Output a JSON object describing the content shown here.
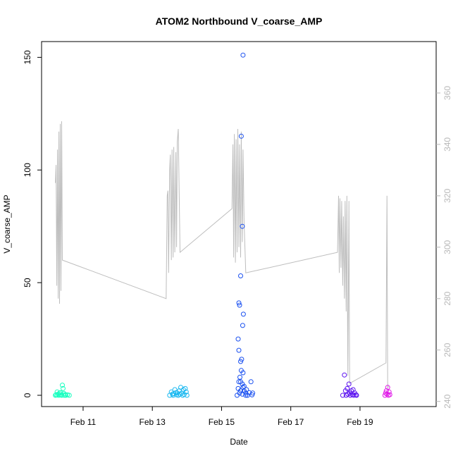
{
  "chart_data": {
    "type": "scatter",
    "title": "ATOM2 Northbound V_coarse_AMP",
    "xlabel": "Date",
    "ylabel": "V_coarse_AMP",
    "x_ticks": [
      "Feb 11",
      "Feb 13",
      "Feb 15",
      "Feb 17",
      "Feb 19"
    ],
    "x_tick_values": [
      11,
      13,
      15,
      17,
      19
    ],
    "xlim": [
      9.8,
      21.2
    ],
    "ylim": [
      -5,
      157
    ],
    "y_ticks": [
      0,
      50,
      100,
      150
    ],
    "right_axis": {
      "ylim": [
        238,
        380
      ],
      "ticks": [
        240,
        260,
        280,
        300,
        320,
        340,
        360
      ],
      "color": "#b8b8b8"
    },
    "grid": false,
    "series": [
      {
        "color": "#1affc0",
        "points": [
          [
            10.2,
            0
          ],
          [
            10.22,
            0.3
          ],
          [
            10.25,
            0.1
          ],
          [
            10.28,
            0.5
          ],
          [
            10.3,
            0
          ],
          [
            10.32,
            1
          ],
          [
            10.35,
            0.2
          ],
          [
            10.38,
            0
          ],
          [
            10.4,
            4.5
          ],
          [
            10.42,
            3
          ],
          [
            10.45,
            0
          ],
          [
            10.48,
            0.3
          ],
          [
            10.5,
            0
          ],
          [
            10.55,
            0.2
          ],
          [
            10.6,
            0
          ],
          [
            10.25,
            1.5
          ],
          [
            10.35,
            1.2
          ],
          [
            10.45,
            0.8
          ]
        ]
      },
      {
        "color": "#1ab8f0",
        "points": [
          [
            13.5,
            0
          ],
          [
            13.55,
            1.5
          ],
          [
            13.58,
            0.5
          ],
          [
            13.6,
            0
          ],
          [
            13.65,
            2.5
          ],
          [
            13.7,
            0.2
          ],
          [
            13.72,
            1
          ],
          [
            13.75,
            0
          ],
          [
            13.78,
            2
          ],
          [
            13.8,
            0.5
          ],
          [
            13.82,
            3.5
          ],
          [
            13.85,
            1
          ],
          [
            13.88,
            0
          ],
          [
            13.9,
            2.5
          ],
          [
            13.95,
            3
          ],
          [
            13.98,
            1.5
          ],
          [
            14.0,
            0
          ],
          [
            13.62,
            0.8
          ],
          [
            13.68,
            1.2
          ],
          [
            13.92,
            0.4
          ]
        ]
      },
      {
        "color": "#1a50f0",
        "points": [
          [
            15.45,
            0
          ],
          [
            15.48,
            3
          ],
          [
            15.5,
            6
          ],
          [
            15.52,
            1
          ],
          [
            15.55,
            2
          ],
          [
            15.6,
            0.5
          ],
          [
            15.65,
            4
          ],
          [
            15.7,
            1
          ],
          [
            15.72,
            2.5
          ],
          [
            15.75,
            0
          ],
          [
            15.8,
            1.2
          ],
          [
            15.85,
            6
          ],
          [
            15.88,
            0.2
          ],
          [
            15.9,
            1
          ],
          [
            15.62,
            151
          ],
          [
            15.57,
            115
          ],
          [
            15.6,
            75
          ],
          [
            15.55,
            53
          ],
          [
            15.5,
            41
          ],
          [
            15.52,
            40
          ],
          [
            15.63,
            36
          ],
          [
            15.61,
            31
          ],
          [
            15.48,
            25
          ],
          [
            15.5,
            20
          ],
          [
            15.58,
            16
          ],
          [
            15.55,
            15
          ],
          [
            15.57,
            11
          ],
          [
            15.62,
            10
          ],
          [
            15.53,
            8
          ],
          [
            15.55,
            6
          ],
          [
            15.6,
            5
          ],
          [
            15.62,
            3.5
          ],
          [
            15.65,
            2
          ],
          [
            15.7,
            0
          ]
        ]
      },
      {
        "color": "#5a10f0",
        "points": [
          [
            18.5,
            0
          ],
          [
            18.55,
            9
          ],
          [
            18.58,
            2
          ],
          [
            18.6,
            0
          ],
          [
            18.63,
            3
          ],
          [
            18.65,
            0.5
          ],
          [
            18.68,
            5
          ],
          [
            18.7,
            1
          ],
          [
            18.72,
            0
          ],
          [
            18.75,
            2
          ],
          [
            18.78,
            0.3
          ],
          [
            18.8,
            2.5
          ],
          [
            18.82,
            0
          ],
          [
            18.85,
            1
          ],
          [
            18.88,
            0.2
          ],
          [
            18.9,
            0
          ]
        ]
      },
      {
        "color": "#e018e8",
        "points": [
          [
            19.72,
            0
          ],
          [
            19.74,
            1
          ],
          [
            19.76,
            2
          ],
          [
            19.78,
            0.5
          ],
          [
            19.8,
            3.5
          ],
          [
            19.82,
            0
          ],
          [
            19.84,
            1.5
          ],
          [
            19.86,
            0.3
          ]
        ]
      }
    ],
    "overlay_line": {
      "color": "#bdbdbd",
      "axis": "right",
      "points": [
        [
          10.2,
          325
        ],
        [
          10.22,
          332
        ],
        [
          10.24,
          285
        ],
        [
          10.26,
          338
        ],
        [
          10.28,
          280
        ],
        [
          10.3,
          345
        ],
        [
          10.32,
          278
        ],
        [
          10.34,
          348
        ],
        [
          10.36,
          283
        ],
        [
          10.38,
          349
        ],
        [
          10.4,
          295
        ],
        [
          13.4,
          280
        ],
        [
          13.43,
          320
        ],
        [
          13.45,
          322
        ],
        [
          13.47,
          290
        ],
        [
          13.5,
          330
        ],
        [
          13.52,
          336
        ],
        [
          13.55,
          295
        ],
        [
          13.57,
          338
        ],
        [
          13.6,
          296
        ],
        [
          13.62,
          339
        ],
        [
          13.65,
          298
        ],
        [
          13.68,
          337
        ],
        [
          13.7,
          300
        ],
        [
          13.72,
          341
        ],
        [
          13.75,
          346
        ],
        [
          13.8,
          298
        ],
        [
          15.3,
          315
        ],
        [
          15.33,
          340
        ],
        [
          15.35,
          296
        ],
        [
          15.37,
          344
        ],
        [
          15.4,
          294
        ],
        [
          15.42,
          342
        ],
        [
          15.45,
          298
        ],
        [
          15.47,
          346
        ],
        [
          15.5,
          300
        ],
        [
          15.52,
          340
        ],
        [
          15.55,
          296
        ],
        [
          15.57,
          345
        ],
        [
          15.6,
          302
        ],
        [
          15.62,
          338
        ],
        [
          15.65,
          310
        ],
        [
          15.7,
          290
        ],
        [
          18.35,
          298
        ],
        [
          18.38,
          320
        ],
        [
          18.4,
          290
        ],
        [
          18.42,
          319
        ],
        [
          18.45,
          292
        ],
        [
          18.47,
          318
        ],
        [
          18.5,
          285
        ],
        [
          18.52,
          312
        ],
        [
          18.55,
          280
        ],
        [
          18.57,
          318
        ],
        [
          18.6,
          275
        ],
        [
          18.62,
          320
        ],
        [
          18.65,
          250
        ],
        [
          18.68,
          318
        ],
        [
          18.7,
          247
        ],
        [
          19.75,
          255
        ],
        [
          19.78,
          320
        ],
        [
          19.8,
          245
        ],
        [
          19.82,
          246
        ]
      ]
    }
  }
}
